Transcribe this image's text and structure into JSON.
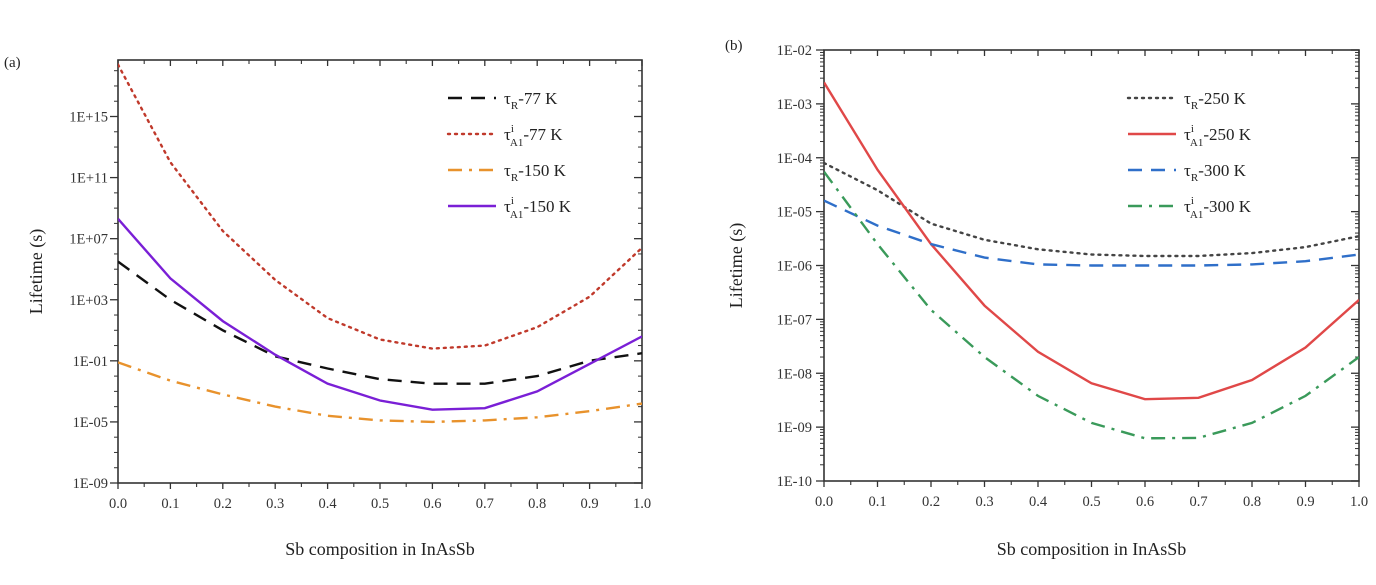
{
  "chart_data": [
    {
      "panel": "(a)",
      "type": "line",
      "title": "",
      "xlabel": "Sb composition in InAsSb",
      "ylabel": "Lifetime (s)",
      "yscale": "log",
      "xlim": [
        0.0,
        1.0
      ],
      "ylim_log10": [
        -9,
        18.7
      ],
      "xticks": [
        "0.0",
        "0.1",
        "0.2",
        "0.3",
        "0.4",
        "0.5",
        "0.6",
        "0.7",
        "0.8",
        "0.9",
        "1.0"
      ],
      "yticks": [
        {
          "label": "1E+15",
          "log10": 15
        },
        {
          "label": "1E+11",
          "log10": 11
        },
        {
          "label": "1E+07",
          "log10": 7
        },
        {
          "label": "1E+03",
          "log10": 3
        },
        {
          "label": "1E-01",
          "log10": -1
        },
        {
          "label": "1E-05",
          "log10": -5
        },
        {
          "label": "1E-09",
          "log10": -9
        }
      ],
      "grid": false,
      "legend_position": "top-right",
      "x": [
        0.0,
        0.1,
        0.2,
        0.3,
        0.4,
        0.5,
        0.6,
        0.7,
        0.8,
        0.9,
        1.0
      ],
      "series": [
        {
          "name": "τR-77 K",
          "symbol": "τ",
          "sub": "R",
          "sup": "",
          "suffix": "-77 K",
          "color": "#111111",
          "style": "dashed",
          "log10_values": [
            5.5,
            3.0,
            1.0,
            -0.7,
            -1.5,
            -2.2,
            -2.5,
            -2.5,
            -2.0,
            -1.0,
            -0.5
          ]
        },
        {
          "name": "τiA1-77 K",
          "symbol": "τ",
          "sub": "A1",
          "sup": "i",
          "suffix": "-77 K",
          "color": "#c0392b",
          "style": "dotted",
          "log10_values": [
            18.4,
            12.0,
            7.5,
            4.3,
            1.8,
            0.4,
            -0.2,
            0.0,
            1.2,
            3.2,
            6.4
          ]
        },
        {
          "name": "τR-150 K",
          "symbol": "τ",
          "sub": "R",
          "sup": "",
          "suffix": "-150 K",
          "color": "#e8922c",
          "style": "dashdot",
          "log10_values": [
            -1.1,
            -2.3,
            -3.2,
            -4.0,
            -4.6,
            -4.9,
            -5.0,
            -4.9,
            -4.7,
            -4.3,
            -3.8
          ]
        },
        {
          "name": "τiA1-150 K",
          "symbol": "τ",
          "sub": "A1",
          "sup": "i",
          "suffix": "-150 K",
          "color": "#7a1fd6",
          "style": "solid",
          "log10_values": [
            8.3,
            4.4,
            1.6,
            -0.6,
            -2.5,
            -3.6,
            -4.2,
            -4.1,
            -3.0,
            -1.2,
            0.6
          ]
        }
      ]
    },
    {
      "panel": "(b)",
      "type": "line",
      "title": "",
      "xlabel": "Sb composition in InAsSb",
      "ylabel": "Lifetime (s)",
      "yscale": "log",
      "xlim": [
        0.0,
        1.0
      ],
      "ylim_log10": [
        -10,
        -2
      ],
      "xticks": [
        "0.0",
        "0.1",
        "0.2",
        "0.3",
        "0.4",
        "0.5",
        "0.6",
        "0.7",
        "0.8",
        "0.9",
        "1.0"
      ],
      "yticks": [
        {
          "label": "1E-02",
          "log10": -2
        },
        {
          "label": "1E-03",
          "log10": -3
        },
        {
          "label": "1E-04",
          "log10": -4
        },
        {
          "label": "1E-05",
          "log10": -5
        },
        {
          "label": "1E-06",
          "log10": -6
        },
        {
          "label": "1E-07",
          "log10": -7
        },
        {
          "label": "1E-08",
          "log10": -8
        },
        {
          "label": "1E-09",
          "log10": -9
        },
        {
          "label": "1E-10",
          "log10": -10
        }
      ],
      "grid": false,
      "legend_position": "top-right",
      "x": [
        0.0,
        0.1,
        0.2,
        0.3,
        0.4,
        0.5,
        0.6,
        0.7,
        0.8,
        0.9,
        1.0
      ],
      "series": [
        {
          "name": "τR-250 K",
          "symbol": "τ",
          "sub": "R",
          "sup": "",
          "suffix": "-250 K",
          "color": "#444444",
          "style": "dotted",
          "values": [
            8e-05,
            2.5e-05,
            6e-06,
            3e-06,
            2e-06,
            1.6e-06,
            1.5e-06,
            1.5e-06,
            1.7e-06,
            2.2e-06,
            3.5e-06
          ]
        },
        {
          "name": "τiA1-250 K",
          "symbol": "τ",
          "sub": "A1",
          "sup": "i",
          "suffix": "-250 K",
          "color": "#e04848",
          "style": "solid",
          "values": [
            0.0025,
            6e-05,
            2.5e-06,
            1.8e-07,
            2.5e-08,
            6.5e-09,
            3.3e-09,
            3.5e-09,
            7.5e-09,
            3e-08,
            2.3e-07
          ]
        },
        {
          "name": "τR-300 K",
          "symbol": "τ",
          "sub": "R",
          "sup": "",
          "suffix": "-300 K",
          "color": "#2f6fc9",
          "style": "dashed",
          "values": [
            1.6e-05,
            5.5e-06,
            2.5e-06,
            1.4e-06,
            1.05e-06,
            1e-06,
            1e-06,
            1e-06,
            1.05e-06,
            1.2e-06,
            1.6e-06
          ]
        },
        {
          "name": "τiA1-300 K",
          "symbol": "τ",
          "sub": "A1",
          "sup": "i",
          "suffix": "-300 K",
          "color": "#3a9a5a",
          "style": "dashdot",
          "values": [
            5.5e-05,
            2.5e-06,
            1.5e-07,
            2e-08,
            3.8e-09,
            1.2e-09,
            6.2e-10,
            6.3e-10,
            1.2e-09,
            3.8e-09,
            2e-08
          ]
        }
      ]
    }
  ]
}
